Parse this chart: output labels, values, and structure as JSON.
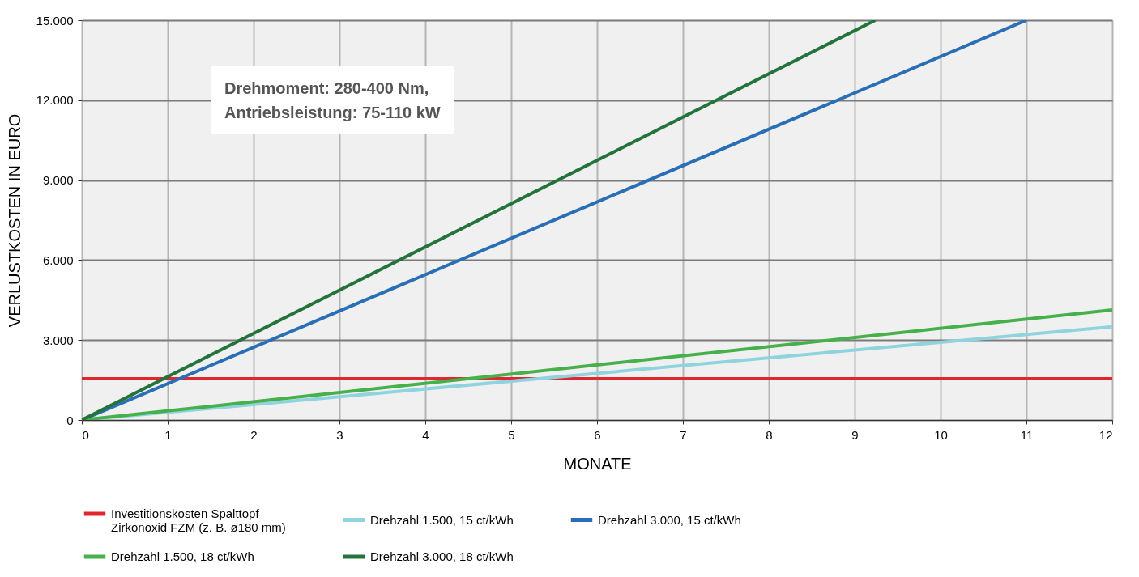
{
  "chart_data": {
    "type": "line",
    "xlabel": "MONATE",
    "ylabel": "VERLUSTKOSTEN IN EURO",
    "xlim": [
      0,
      12
    ],
    "xticks": [
      0,
      1,
      2,
      3,
      4,
      5,
      6,
      7,
      8,
      9,
      10,
      11,
      12
    ],
    "ylim": [
      0,
      15000
    ],
    "yticks": [
      {
        "value": 0,
        "label": "0"
      },
      {
        "value": 3000,
        "label": "3.000"
      },
      {
        "value": 6000,
        "label": "6.000"
      },
      {
        "value": 9000,
        "label": "9.000"
      },
      {
        "value": 12000,
        "label": "12.000"
      },
      {
        "value": 15000,
        "label": "15.000"
      }
    ],
    "grid": true,
    "legend": "bottom",
    "line_style": "solid",
    "marker": "none",
    "annotations": [
      "Drehmoment: 280-400 Nm, Antriebsleistung: 75-110 kW"
    ],
    "series": [
      {
        "name": "Investitionskosten Spalttopf Zirkonoxid FZM (z. B. ø180 mm)",
        "color": "#e0262f",
        "x": [
          0,
          12
        ],
        "values": [
          1550,
          1550
        ]
      },
      {
        "name": "Drehzahl 1.500, 15 ct/kWh",
        "color": "#8fd3df",
        "x": [
          0,
          12
        ],
        "values": [
          0,
          3500
        ]
      },
      {
        "name": "Drehzahl 3.000, 15 ct/kWh",
        "color": "#2a6fb5",
        "x": [
          0,
          11
        ],
        "values": [
          0,
          15000
        ]
      },
      {
        "name": "Drehzahl 1.500, 18 ct/kWh",
        "color": "#46b04a",
        "x": [
          0,
          12
        ],
        "values": [
          0,
          4130
        ]
      },
      {
        "name": "Drehzahl 3.000, 18 ct/kWh",
        "color": "#24733a",
        "x": [
          0,
          9.24
        ],
        "values": [
          0,
          15000
        ]
      }
    ]
  }
}
